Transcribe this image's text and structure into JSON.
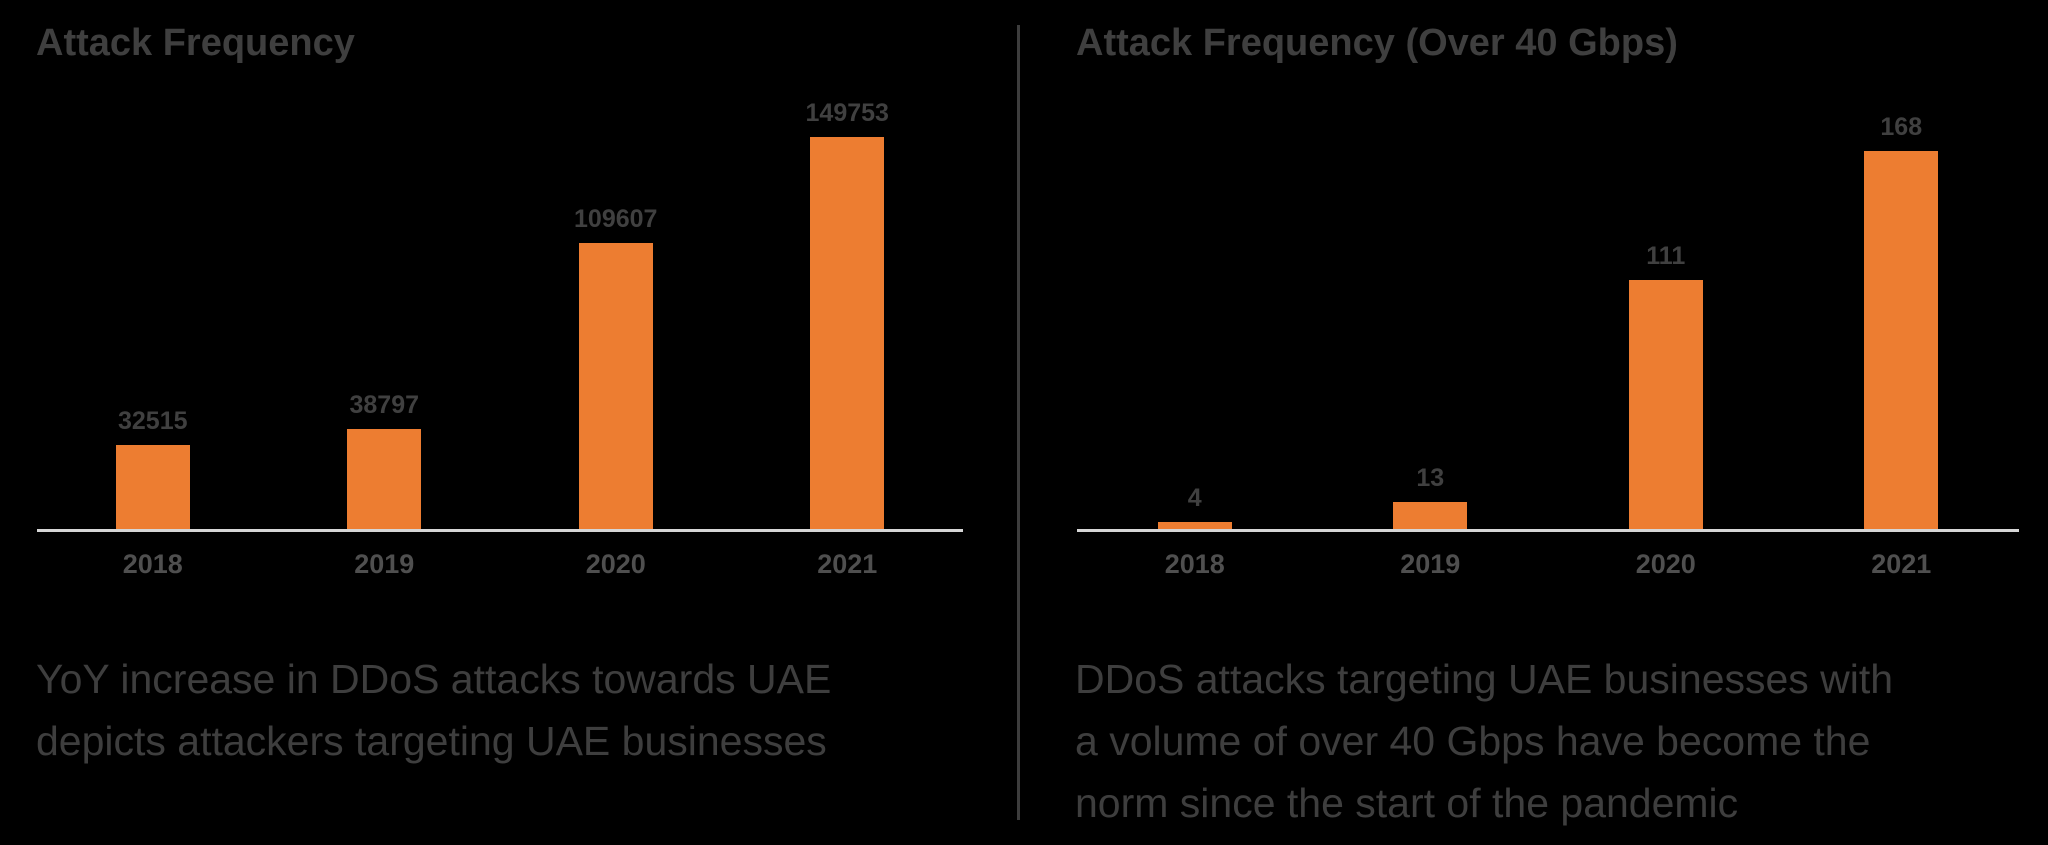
{
  "page": {
    "background": "#000000",
    "divider_color": "#3d3d3d"
  },
  "chart_data": [
    {
      "type": "bar",
      "title": "Attack Frequency",
      "categories": [
        "2018",
        "2019",
        "2020",
        "2021"
      ],
      "values": [
        32515,
        38797,
        109607,
        149753
      ],
      "bar_color": "#ED7D31",
      "value_label_color": "#404040",
      "category_label_color": "#4F4F4F",
      "axis_line_color": "#D6D6D6",
      "grid": false,
      "y_axis": "hidden",
      "data_labels": "above-bars",
      "legend": "none",
      "caption_lines": [
        "YoY increase in DDoS attacks towards UAE",
        "depicts attackers targeting UAE businesses"
      ]
    },
    {
      "type": "bar",
      "title": "Attack Frequency (Over 40 Gbps)",
      "categories": [
        "2018",
        "2019",
        "2020",
        "2021"
      ],
      "values": [
        4,
        13,
        111,
        168
      ],
      "bar_color": "#ED7D31",
      "value_label_color": "#404040",
      "category_label_color": "#4F4F4F",
      "axis_line_color": "#D6D6D6",
      "grid": false,
      "y_axis": "hidden",
      "data_labels": "above-bars",
      "legend": "none",
      "caption_lines": [
        "DDoS attacks targeting UAE businesses with",
        "a volume of over 40 Gbps have become the",
        "norm since the start of the pandemic"
      ]
    }
  ]
}
